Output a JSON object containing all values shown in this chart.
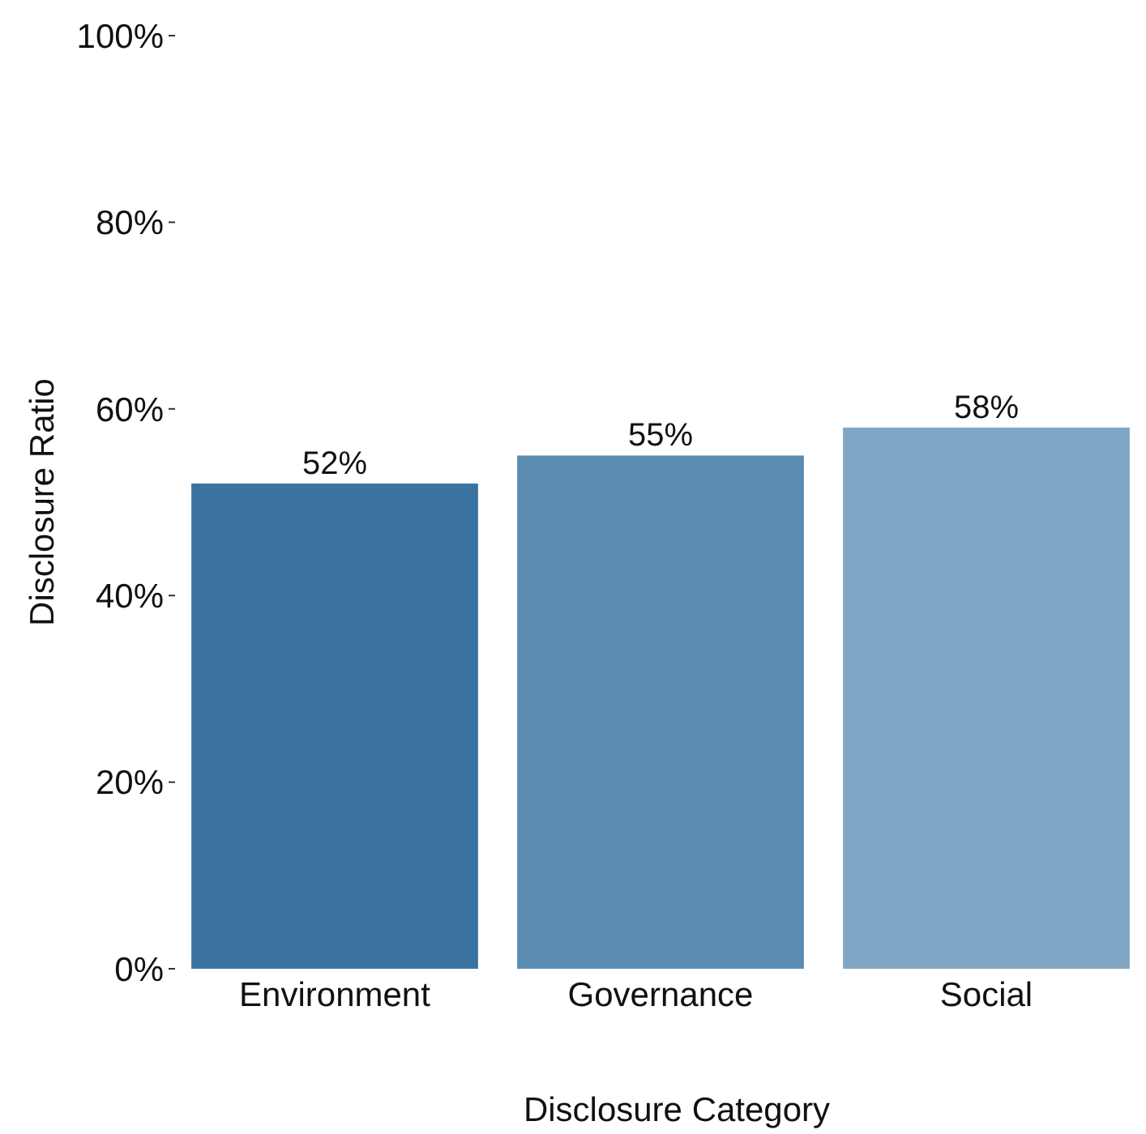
{
  "chart_data": {
    "type": "bar",
    "xlabel": "Disclosure Category",
    "ylabel": "Disclosure Ratio",
    "categories": [
      "Environment",
      "Governance",
      "Social"
    ],
    "values": [
      52,
      55,
      58
    ],
    "colors": [
      "#3a73a0",
      "#5b8db3",
      "#80a6c5"
    ],
    "value_labels": [
      "52%",
      "55%",
      "58%"
    ],
    "ylim": [
      0,
      100
    ],
    "yticks": [
      {
        "value": 0,
        "label": "0%"
      },
      {
        "value": 20,
        "label": "20%"
      },
      {
        "value": 40,
        "label": "40%"
      },
      {
        "value": 60,
        "label": "60%"
      },
      {
        "value": 80,
        "label": "80%"
      },
      {
        "value": 100,
        "label": "100%"
      }
    ],
    "grid": false
  }
}
